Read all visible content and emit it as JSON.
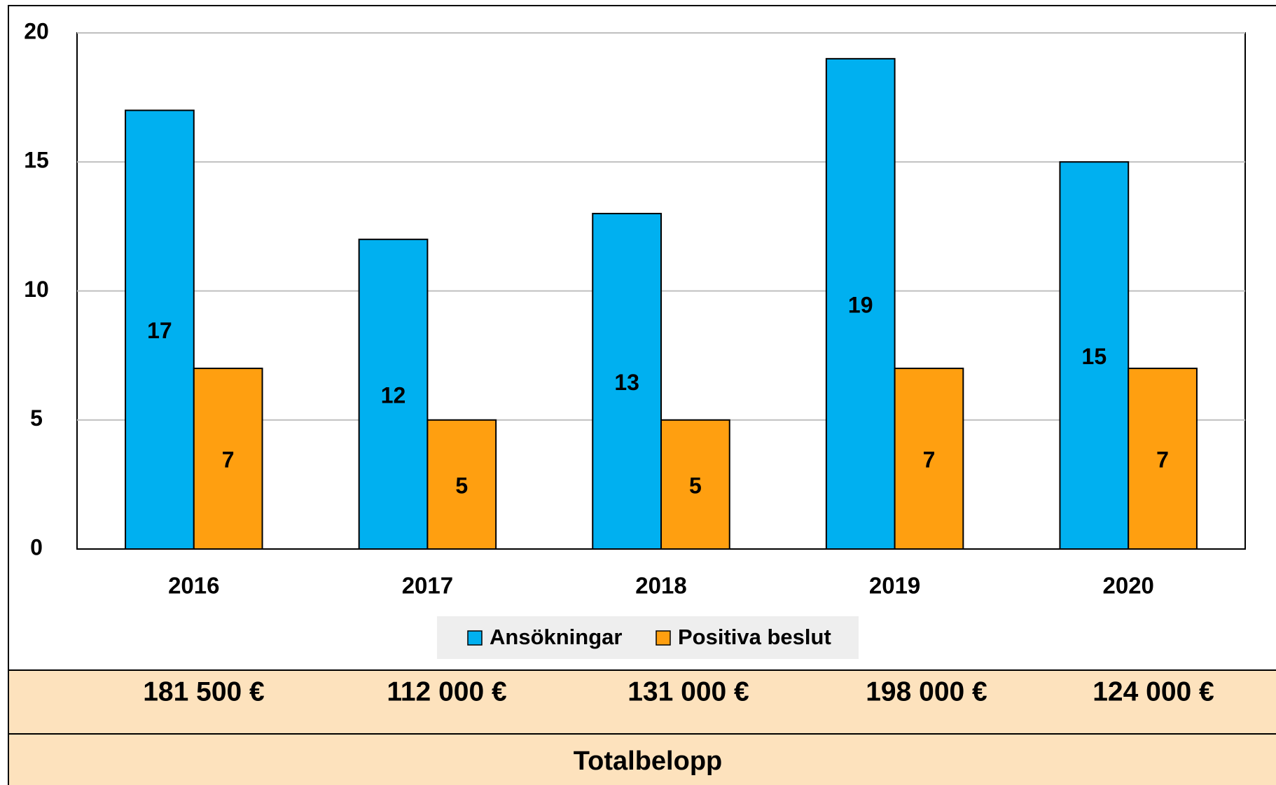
{
  "chart_data": {
    "type": "bar",
    "categories": [
      "2016",
      "2017",
      "2018",
      "2019",
      "2020"
    ],
    "series": [
      {
        "name": "Ansökningar",
        "color": "#00b0f0",
        "values": [
          17,
          12,
          13,
          19,
          15
        ]
      },
      {
        "name": "Positiva beslut",
        "color": "#ff9f10",
        "values": [
          7,
          5,
          5,
          7,
          7
        ]
      }
    ],
    "ylim": [
      0,
      20
    ],
    "yticks": [
      0,
      5,
      10,
      15,
      20
    ],
    "grid": true,
    "legend": "bottom"
  },
  "table": {
    "amounts": [
      "181 500 €",
      "112 000 €",
      "131 000 €",
      "198 000 €",
      "124 000 €"
    ],
    "label": "Totalbelopp"
  }
}
